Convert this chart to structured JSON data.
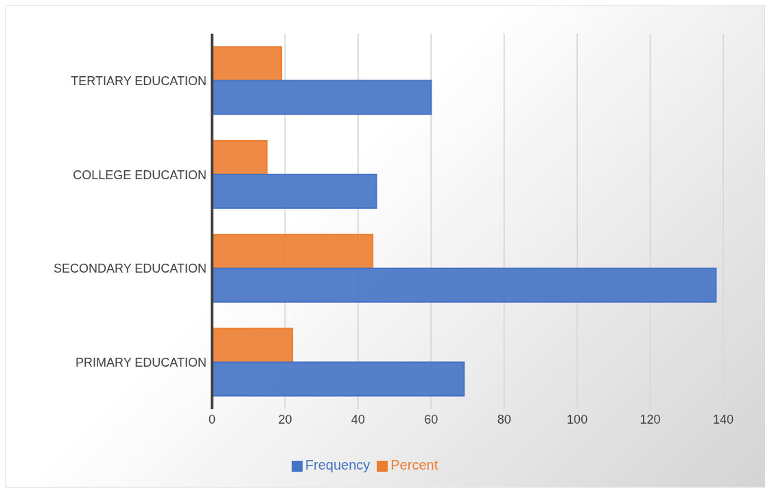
{
  "chart_data": {
    "type": "bar",
    "orientation": "horizontal",
    "categories": [
      "TERTIARY EDUCATION",
      "COLLEGE EDUCATION",
      "SECONDARY EDUCATION",
      "PRIMARY EDUCATION"
    ],
    "series": [
      {
        "name": "Percent",
        "color": "#ed7d31",
        "values": [
          19,
          15,
          44,
          22
        ]
      },
      {
        "name": "Frequency",
        "color": "#4472c4",
        "values": [
          60,
          45,
          138,
          69
        ]
      }
    ],
    "xlim": [
      0,
      140
    ],
    "xticks": [
      0,
      20,
      40,
      60,
      80,
      100,
      120,
      140
    ],
    "grid": "x",
    "legend": "bottom"
  }
}
